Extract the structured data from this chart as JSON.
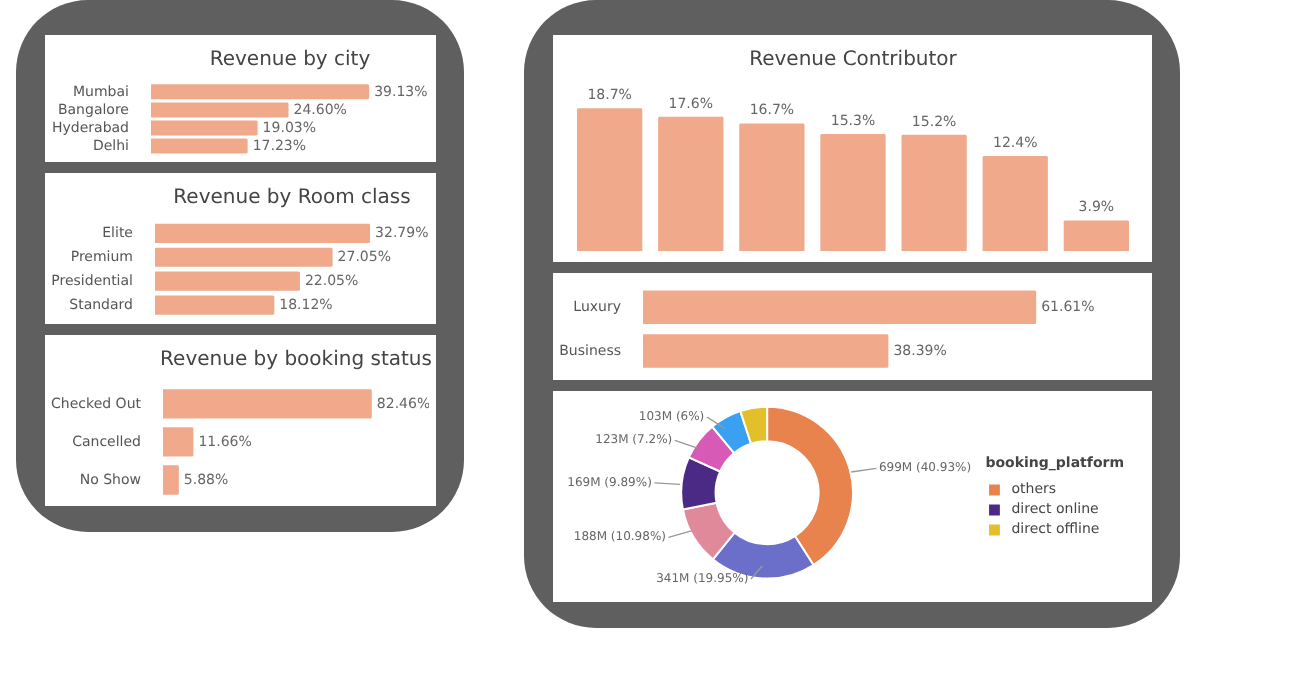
{
  "chart_data": [
    {
      "type": "bar",
      "orientation": "horizontal",
      "title": "Revenue by city",
      "categories": [
        "Mumbai",
        "Bangalore",
        "Hyderabad",
        "Delhi"
      ],
      "values": [
        39.13,
        24.6,
        19.03,
        17.23
      ],
      "value_labels": [
        "39.13%",
        "24.60%",
        "19.03%",
        "17.23%"
      ],
      "color": "#f0a98a"
    },
    {
      "type": "bar",
      "orientation": "horizontal",
      "title": "Revenue by Room class",
      "categories": [
        "Elite",
        "Premium",
        "Presidential",
        "Standard"
      ],
      "values": [
        32.79,
        27.05,
        22.05,
        18.12
      ],
      "value_labels": [
        "32.79%",
        "27.05%",
        "22.05%",
        "18.12%"
      ],
      "color": "#f0a98a"
    },
    {
      "type": "bar",
      "orientation": "horizontal",
      "title": "Revenue by booking status",
      "categories": [
        "Checked Out",
        "Cancelled",
        "No Show"
      ],
      "values": [
        82.46,
        11.66,
        5.88
      ],
      "value_labels": [
        "82.46%",
        "11.66%",
        "5.88%"
      ],
      "color": "#f0a98a"
    },
    {
      "type": "bar",
      "title": "Revenue Contributor",
      "categories": [
        null,
        null,
        null,
        null,
        null,
        null,
        null
      ],
      "values": [
        18.7,
        17.6,
        16.7,
        15.3,
        15.2,
        12.4,
        3.9
      ],
      "value_labels": [
        "18.7%",
        "17.6%",
        "16.7%",
        "15.3%",
        "15.2%",
        "12.4%",
        "3.9%"
      ],
      "color": "#f0a98a"
    },
    {
      "type": "bar",
      "orientation": "horizontal",
      "categories": [
        "Luxury",
        "Business"
      ],
      "values": [
        61.61,
        38.39
      ],
      "value_labels": [
        "61.61%",
        "38.39%"
      ],
      "color": "#f0a98a"
    },
    {
      "type": "donut",
      "legend_title": "booking_platform",
      "legend": "right",
      "categories": [
        "others",
        null,
        null,
        "direct online",
        null,
        null,
        "direct offline"
      ],
      "values": [
        40.93,
        19.95,
        10.98,
        9.89,
        7.2,
        6,
        5.05
      ],
      "value_labels": [
        "699M (40.93%)",
        "341M (19.95%)",
        "188M (10.98%)",
        "169M (9.89%)",
        "123M (7.2%)",
        "103M (6%)",
        null
      ],
      "colors": [
        "#e8834e",
        "#6b6fc9",
        "#e0899a",
        "#4b2a85",
        "#d75ab7",
        "#3aa0f2",
        "#e3c029"
      ]
    }
  ]
}
